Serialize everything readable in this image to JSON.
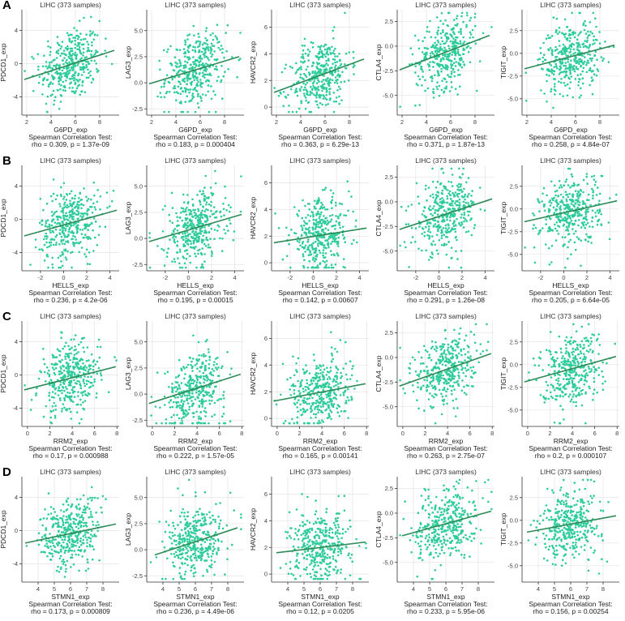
{
  "rows": [
    {
      "label": "A",
      "xlabel": "G6PD_exp",
      "xticks": [
        2,
        4,
        6,
        8
      ],
      "xlim": [
        1.6,
        9.6
      ],
      "panels": [
        {
          "title": "LIHC (373 samples)",
          "ylabel": "PDCD1_exp",
          "yticks": [
            -4,
            0,
            4
          ],
          "ylim": [
            -6.2,
            6.5
          ],
          "stat_title": "Spearman Correlation Test:",
          "stat": "rho = 0.309, p = 1.37e-09",
          "fit": {
            "x": [
              1.8,
              9.2
            ],
            "y": [
              -1.9,
              1.6
            ]
          }
        },
        {
          "title": "LIHC (373 samples)",
          "ylabel": "LAG3_exp",
          "yticks": [
            -2.5,
            0.0,
            2.5,
            5.0
          ],
          "ylim": [
            -3.1,
            7.0
          ],
          "stat_title": "Spearman Correlation Test:",
          "stat": "rho = 0.183, p = 0.000404",
          "fit": {
            "x": [
              1.8,
              9.2
            ],
            "y": [
              -0.1,
              2.5
            ]
          }
        },
        {
          "title": "LIHC (373 samples)",
          "ylabel": "HAVCR2_exp",
          "yticks": [
            0,
            2,
            4,
            6
          ],
          "ylim": [
            -0.6,
            7.3
          ],
          "stat_title": "Spearman Correlation Test:",
          "stat": "rho = 0.363, p = 6.29e-13",
          "fit": {
            "x": [
              1.8,
              9.2
            ],
            "y": [
              1.1,
              3.6
            ]
          }
        },
        {
          "title": "LIHC (373 samples)",
          "ylabel": "CTLA4_exp",
          "yticks": [
            -5.0,
            -2.5,
            0.0,
            2.5
          ],
          "ylim": [
            -7.0,
            3.7
          ],
          "stat_title": "Spearman Correlation Test:",
          "stat": "rho = 0.371, p = 1.87e-13",
          "fit": {
            "x": [
              1.8,
              9.2
            ],
            "y": [
              -2.4,
              1.1
            ]
          }
        },
        {
          "title": "LIHC (373 samples)",
          "ylabel": "TIGIT_exp",
          "yticks": [
            -5.0,
            -2.5,
            0.0,
            2.5
          ],
          "ylim": [
            -6.8,
            4.8
          ],
          "stat_title": "Spearman Correlation Test:",
          "stat": "rho = 0.258, p = 4.84e-07",
          "fit": {
            "x": [
              1.8,
              9.2
            ],
            "y": [
              -1.7,
              0.9
            ]
          }
        }
      ]
    },
    {
      "label": "B",
      "xlabel": "HELLS_exp",
      "xticks": [
        -2,
        0,
        2,
        4
      ],
      "xlim": [
        -3.6,
        4.8
      ],
      "panels": [
        {
          "title": "LIHC (373 samples)",
          "ylabel": "PDCD1_exp",
          "yticks": [
            -4,
            0,
            4
          ],
          "ylim": [
            -6.2,
            6.5
          ],
          "stat_title": "Spearman Correlation Test:",
          "stat": "rho = 0.236, p = 4.2e-06",
          "fit": {
            "x": [
              -3.4,
              4.6
            ],
            "y": [
              -2.0,
              1.1
            ]
          }
        },
        {
          "title": "LIHC (373 samples)",
          "ylabel": "LAG3_exp",
          "yticks": [
            -2.5,
            0.0,
            2.5,
            5.0
          ],
          "ylim": [
            -3.1,
            7.0
          ],
          "stat_title": "Spearman Correlation Test:",
          "stat": "rho = 0.195, p = 0.00015",
          "fit": {
            "x": [
              -3.4,
              4.6
            ],
            "y": [
              -0.3,
              2.3
            ]
          }
        },
        {
          "title": "LIHC (373 samples)",
          "ylabel": "HAVCR2_exp",
          "yticks": [
            0,
            2,
            4,
            6
          ],
          "ylim": [
            -0.6,
            7.3
          ],
          "stat_title": "Spearman Correlation Test:",
          "stat": "rho = 0.142, p = 0.00607",
          "fit": {
            "x": [
              -3.4,
              4.6
            ],
            "y": [
              1.5,
              2.6
            ]
          }
        },
        {
          "title": "LIHC (373 samples)",
          "ylabel": "CTLA4_exp",
          "yticks": [
            -5.0,
            -2.5,
            0.0,
            2.5
          ],
          "ylim": [
            -7.0,
            3.7
          ],
          "stat_title": "Spearman Correlation Test:",
          "stat": "rho = 0.291, p = 1.26e-08",
          "fit": {
            "x": [
              -3.4,
              4.6
            ],
            "y": [
              -2.8,
              0.3
            ]
          }
        },
        {
          "title": "LIHC (373 samples)",
          "ylabel": "TIGIT_exp",
          "yticks": [
            -5.0,
            -2.5,
            0.0,
            2.5
          ],
          "ylim": [
            -6.8,
            4.8
          ],
          "stat_title": "Spearman Correlation Test:",
          "stat": "rho = 0.205, p = 6.64e-05",
          "fit": {
            "x": [
              -3.4,
              4.6
            ],
            "y": [
              -1.4,
              0.9
            ]
          }
        }
      ]
    },
    {
      "label": "C",
      "xlabel": "RRM2_exp",
      "xticks": [
        0,
        2,
        4,
        6,
        8
      ],
      "xlim": [
        -0.5,
        8.2
      ],
      "panels": [
        {
          "title": "LIHC (373 samples)",
          "ylabel": "PDCD1_exp",
          "yticks": [
            -4,
            0,
            4
          ],
          "ylim": [
            -6.2,
            6.5
          ],
          "stat_title": "Spearman Correlation Test:",
          "stat": "rho = 0.17, p = 0.000988",
          "fit": {
            "x": [
              -0.3,
              7.9
            ],
            "y": [
              -1.8,
              1.0
            ]
          }
        },
        {
          "title": "LIHC (373 samples)",
          "ylabel": "LAG3_exp",
          "yticks": [
            -2.5,
            0.0,
            2.5,
            5.0
          ],
          "ylim": [
            -3.1,
            7.0
          ],
          "stat_title": "Spearman Correlation Test:",
          "stat": "rho = 0.222, p = 1.57e-05",
          "fit": {
            "x": [
              -0.3,
              7.9
            ],
            "y": [
              -0.9,
              1.9
            ]
          }
        },
        {
          "title": "LIHC (373 samples)",
          "ylabel": "HAVCR2_exp",
          "yticks": [
            0,
            2,
            4,
            6
          ],
          "ylim": [
            -0.6,
            7.3
          ],
          "stat_title": "Spearman Correlation Test:",
          "stat": "rho = 0.165, p = 0.00141",
          "fit": {
            "x": [
              -0.3,
              7.9
            ],
            "y": [
              1.3,
              2.6
            ]
          }
        },
        {
          "title": "LIHC (373 samples)",
          "ylabel": "CTLA4_exp",
          "yticks": [
            -5.0,
            -2.5,
            0.0,
            2.5
          ],
          "ylim": [
            -7.0,
            3.7
          ],
          "stat_title": "Spearman Correlation Test:",
          "stat": "rho = 0.263, p = 2.75e-07",
          "fit": {
            "x": [
              -0.3,
              7.9
            ],
            "y": [
              -2.9,
              0.4
            ]
          }
        },
        {
          "title": "LIHC (373 samples)",
          "ylabel": "TIGIT_exp",
          "yticks": [
            -5.0,
            -2.5,
            0.0,
            2.5
          ],
          "ylim": [
            -6.8,
            4.8
          ],
          "stat_title": "Spearman Correlation Test:",
          "stat": "rho = 0.2, p = 0.000107",
          "fit": {
            "x": [
              -0.3,
              7.9
            ],
            "y": [
              -1.9,
              0.9
            ]
          }
        }
      ]
    },
    {
      "label": "D",
      "xlabel": "STMN1_exp",
      "xticks": [
        4,
        5,
        6,
        7,
        8
      ],
      "xlim": [
        3.0,
        9.0
      ],
      "panels": [
        {
          "title": "LIHC (373 samples)",
          "ylabel": "PDCD1_exp",
          "yticks": [
            -4,
            0,
            4
          ],
          "ylim": [
            -6.2,
            6.5
          ],
          "stat_title": "Spearman Correlation Test:",
          "stat": "rho = 0.173, p = 0.000809",
          "fit": {
            "x": [
              3.2,
              8.8
            ],
            "y": [
              -1.5,
              0.8
            ]
          }
        },
        {
          "title": "LIHC (373 samples)",
          "ylabel": "LAG3_exp",
          "yticks": [
            -2.5,
            0.0,
            2.5,
            5.0
          ],
          "ylim": [
            -3.1,
            7.0
          ],
          "stat_title": "Spearman Correlation Test:",
          "stat": "rho = 0.236, p = 4.49e-06",
          "fit": {
            "x": [
              3.5,
              8.6
            ],
            "y": [
              -0.5,
              2.1
            ]
          }
        },
        {
          "title": "LIHC (373 samples)",
          "ylabel": "HAVCR2_exp",
          "yticks": [
            0,
            2,
            4,
            6
          ],
          "ylim": [
            -0.6,
            7.3
          ],
          "stat_title": "Spearman Correlation Test:",
          "stat": "rho = 0.12, p = 0.0205",
          "fit": {
            "x": [
              3.3,
              8.8
            ],
            "y": [
              1.6,
              2.4
            ]
          }
        },
        {
          "title": "LIHC (373 samples)",
          "ylabel": "CTLA4_exp",
          "yticks": [
            -5.0,
            -2.5,
            0.0,
            2.5
          ],
          "ylim": [
            -7.0,
            3.7
          ],
          "stat_title": "Spearman Correlation Test:",
          "stat": "rho = 0.233, p = 5.95e-06",
          "fit": {
            "x": [
              3.3,
              8.8
            ],
            "y": [
              -2.3,
              0.2
            ]
          }
        },
        {
          "title": "LIHC (373 samples)",
          "ylabel": "TIGIT_exp",
          "yticks": [
            -5.0,
            -2.5,
            0.0,
            2.5
          ],
          "ylim": [
            -6.8,
            4.8
          ],
          "stat_title": "Spearman Correlation Test:",
          "stat": "rho = 0.156, p = 0.00254",
          "fit": {
            "x": [
              3.3,
              8.8
            ],
            "y": [
              -1.3,
              0.5
            ]
          }
        }
      ]
    }
  ],
  "chart_data": {
    "type": "scatter",
    "note_points": "Each panel shows 373 scatter points; individual values are not legible and are not encoded here.",
    "point_color": "#2ecc9a",
    "line_color": "#2e8b57"
  }
}
